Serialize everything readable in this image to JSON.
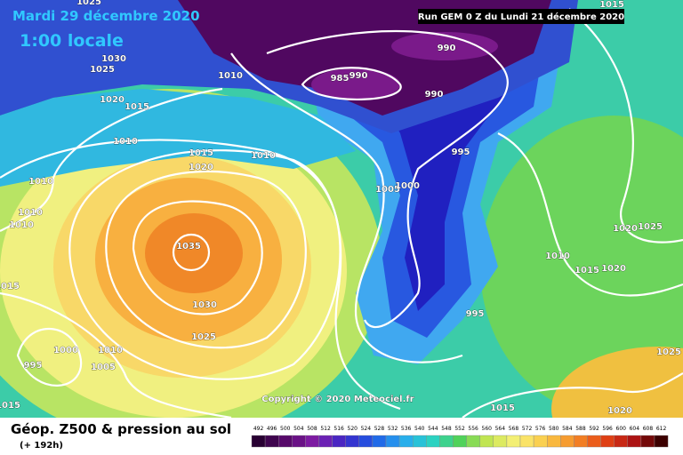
{
  "header": {
    "date": "Mardi 29 décembre 2020",
    "time": "1:00 locale",
    "run": "Run GEM 0 Z du Lundi 21 décembre 2020"
  },
  "isobar_labels": [
    1025,
    1030,
    1025,
    1010,
    1020,
    1015,
    1010,
    1015,
    1010,
    1020,
    1010,
    1010,
    1010,
    1035,
    1030,
    1025,
    1015,
    1000,
    1010,
    995,
    1005,
    1015,
    990,
    990,
    985,
    990,
    995,
    1005,
    1000,
    1010,
    1015,
    1015,
    1020,
    1025,
    1020,
    995,
    1015,
    1020,
    1025
  ],
  "copyright": "Copyright © 2020 Meteociel.fr",
  "footer": {
    "title": "Géop. Z500 & pression au sol",
    "lead": "(+ 192h)"
  },
  "legend": {
    "values": [
      492,
      496,
      500,
      504,
      508,
      512,
      516,
      520,
      524,
      528,
      532,
      536,
      540,
      544,
      548,
      552,
      556,
      560,
      564,
      568,
      572,
      576,
      580,
      584,
      588,
      592,
      596,
      600,
      604,
      608,
      612
    ]
  }
}
